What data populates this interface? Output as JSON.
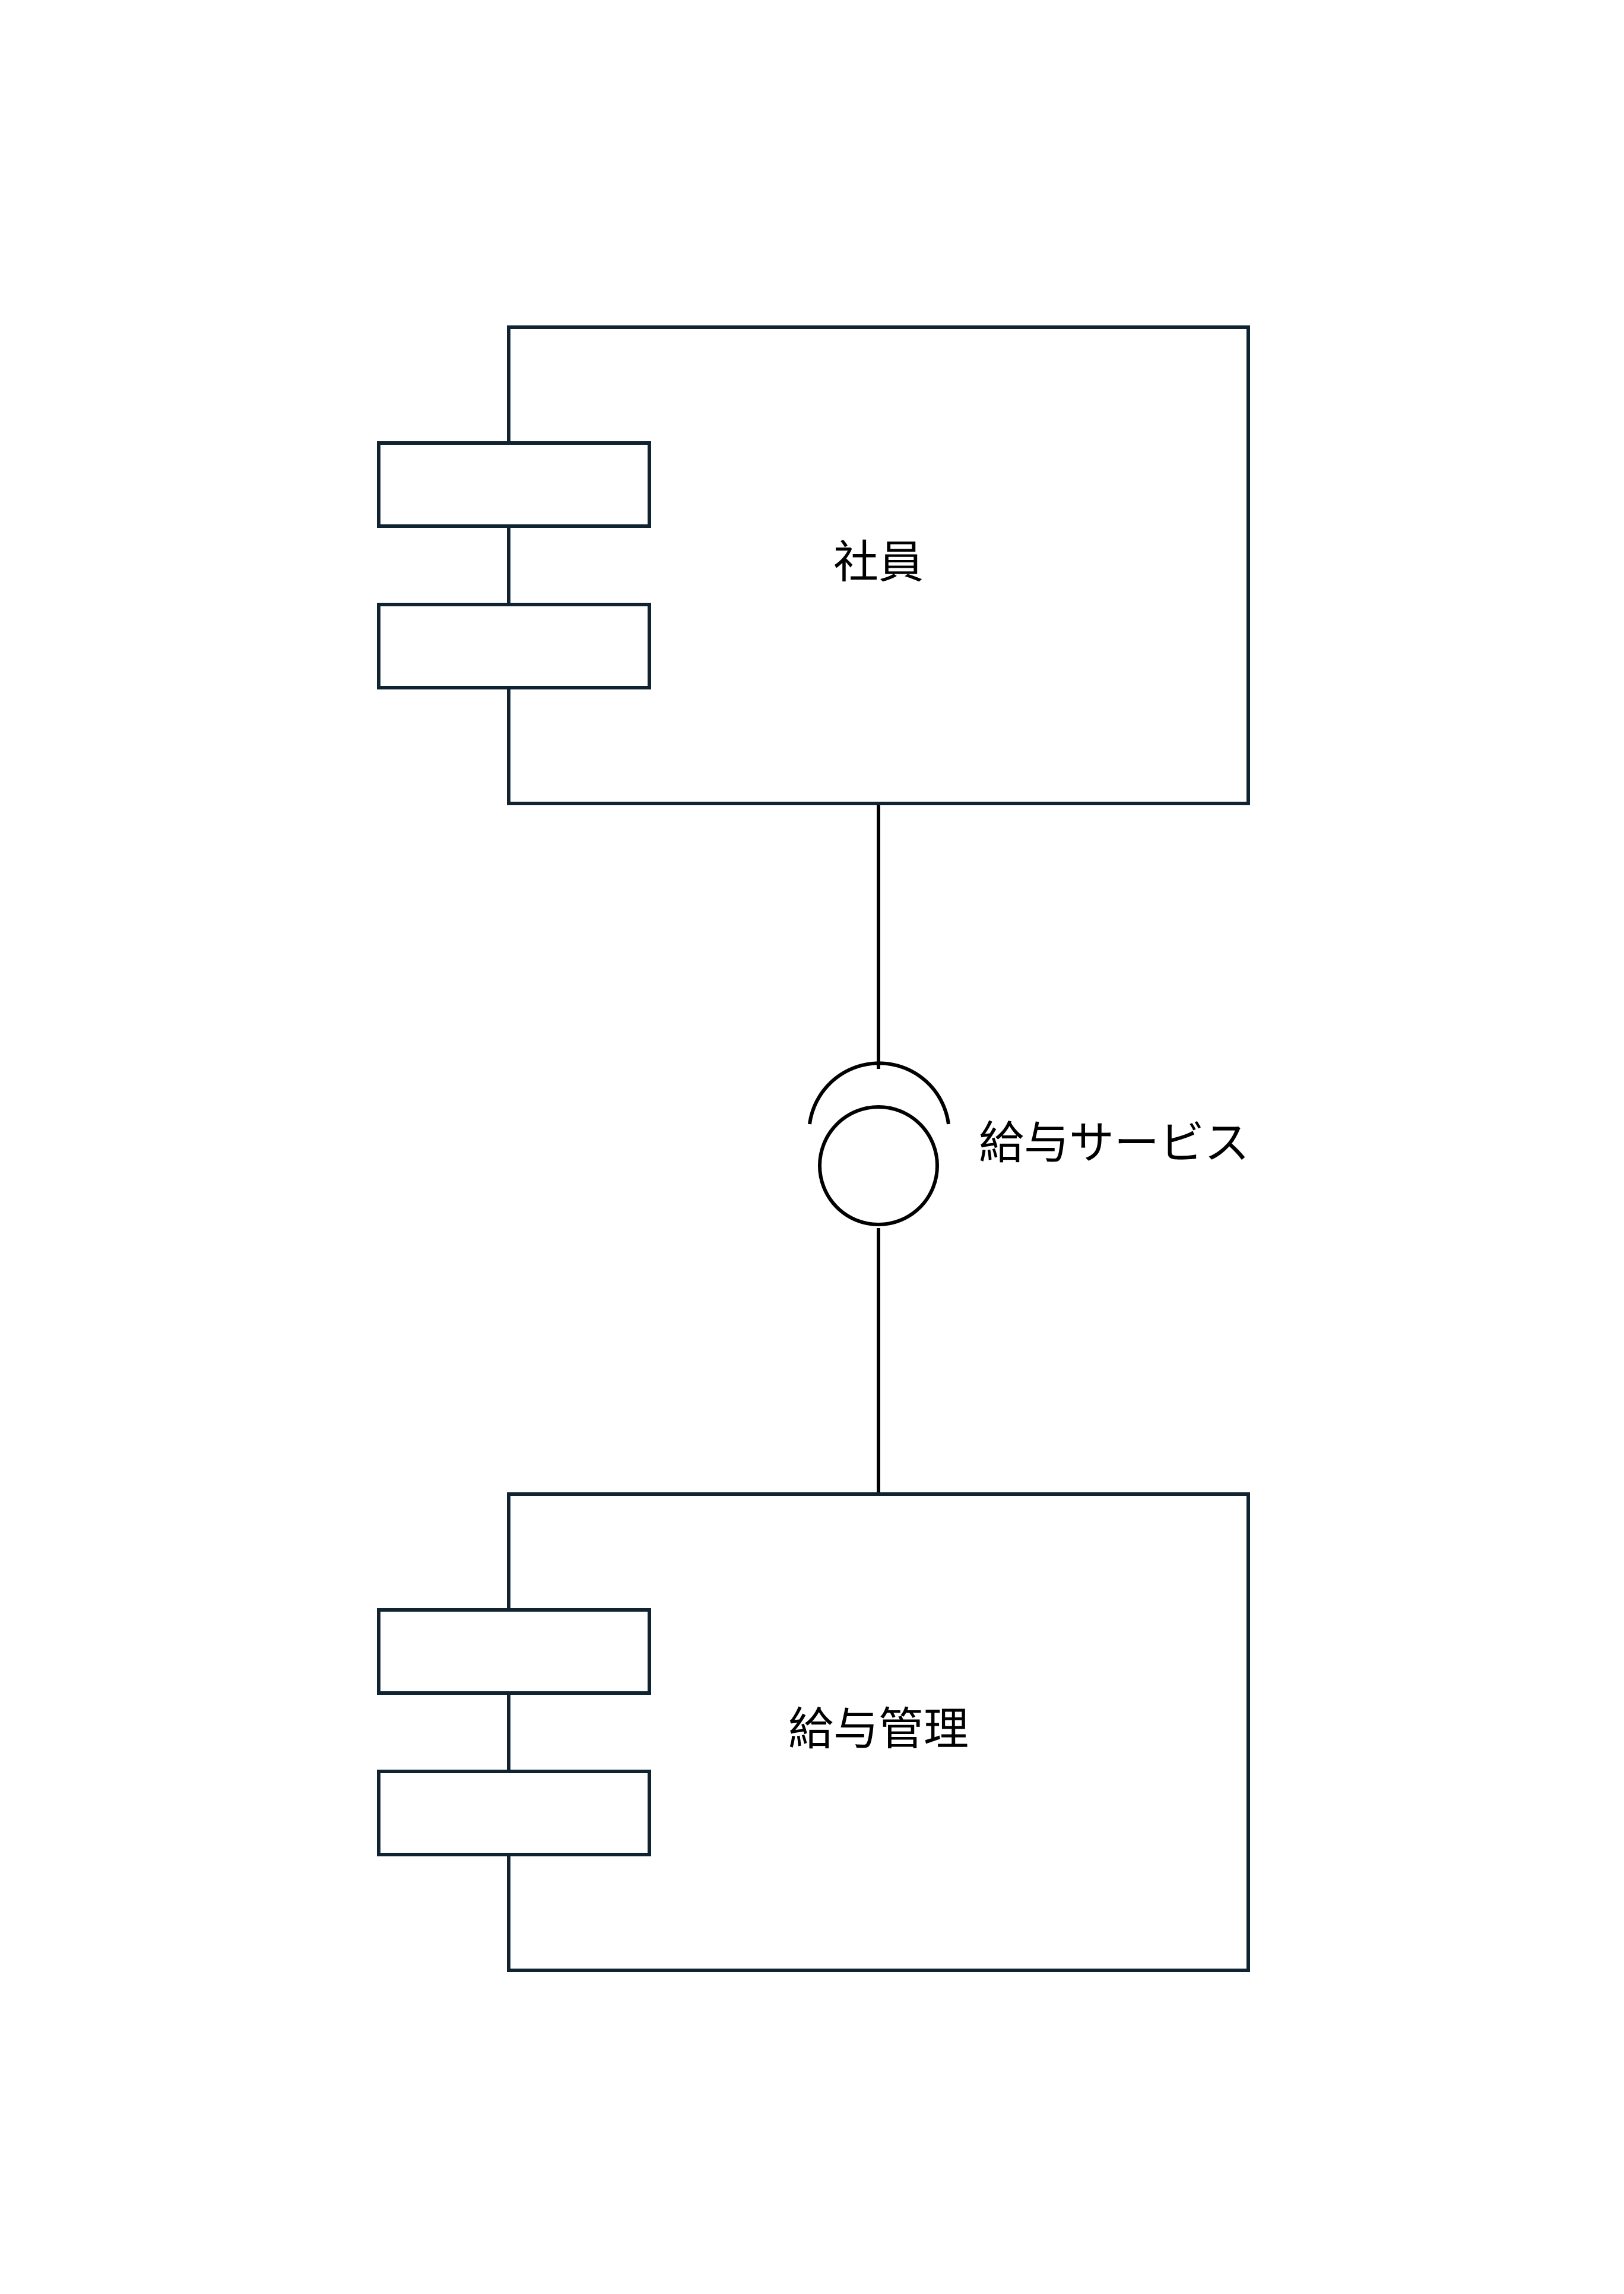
{
  "components": [
    {
      "id": "employee",
      "label": "社員"
    },
    {
      "id": "payroll",
      "label": "給与管理"
    }
  ],
  "interface": {
    "label": "給与サービス"
  },
  "colors": {
    "stroke": "#0f2430",
    "line": "#000000",
    "background": "#ffffff"
  }
}
